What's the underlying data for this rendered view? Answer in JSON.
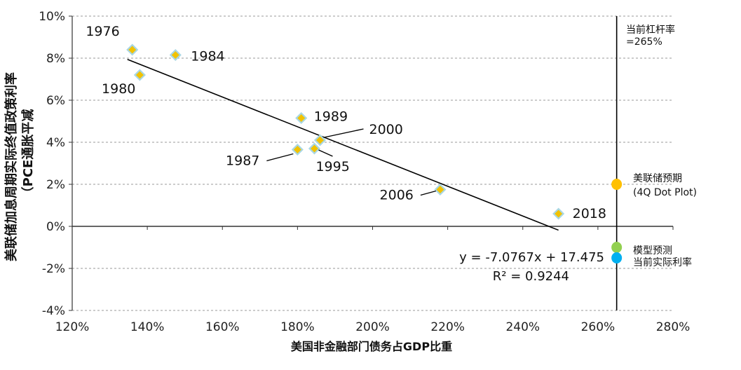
{
  "chart_data": {
    "type": "scatter",
    "xlabel": "美国非金融部门债务占GDP比重",
    "ylabel_line1": "美联储加息周期实际终值政策利率",
    "ylabel_line2": "（PCE通胀平减",
    "xlim": [
      120,
      280
    ],
    "ylim": [
      -4,
      10
    ],
    "x_ticks": [
      {
        "v": 120,
        "label": "120%"
      },
      {
        "v": 140,
        "label": "140%"
      },
      {
        "v": 160,
        "label": "160%"
      },
      {
        "v": 180,
        "label": "180%"
      },
      {
        "v": 200,
        "label": "200%"
      },
      {
        "v": 220,
        "label": "220%"
      },
      {
        "v": 240,
        "label": "240%"
      },
      {
        "v": 260,
        "label": "260%"
      },
      {
        "v": 280,
        "label": "280%"
      }
    ],
    "y_ticks": [
      {
        "v": 10,
        "label": "10%"
      },
      {
        "v": 8,
        "label": "8%"
      },
      {
        "v": 6,
        "label": "6%"
      },
      {
        "v": 4,
        "label": "4%"
      },
      {
        "v": 2,
        "label": "2%"
      },
      {
        "v": 0,
        "label": "0%"
      },
      {
        "v": -2,
        "label": "-2%"
      },
      {
        "v": -4,
        "label": "-4%"
      }
    ],
    "grid": true,
    "points": [
      {
        "label": "1976",
        "x": 136.0,
        "y": 8.4
      },
      {
        "label": "1984",
        "x": 147.5,
        "y": 8.15
      },
      {
        "label": "1980",
        "x": 138.0,
        "y": 7.2
      },
      {
        "label": "1989",
        "x": 181.0,
        "y": 5.15
      },
      {
        "label": "2000",
        "x": 186.0,
        "y": 4.1
      },
      {
        "label": "1987",
        "x": 180.0,
        "y": 3.65
      },
      {
        "label": "1995",
        "x": 184.5,
        "y": 3.7
      },
      {
        "label": "2006",
        "x": 218.0,
        "y": 1.75
      },
      {
        "label": "2018",
        "x": 249.5,
        "y": 0.6
      }
    ],
    "trendline": {
      "x_start": 134.7,
      "x_end": 249.5,
      "equation": "y = -7.0767x + 17.475",
      "r2": "R² = 0.9244"
    },
    "reference_line": {
      "x": 265,
      "label_line1": "当前杠杆率",
      "label_line2": "=265%"
    },
    "markers": [
      {
        "name_line1": "美联储预期",
        "name_line2": "(4Q Dot Plot)",
        "x": 265,
        "y": 2.0,
        "color": "#FFC000"
      },
      {
        "name_line1": "模型预测",
        "name_line2": "",
        "x": 265,
        "y": -1.0,
        "color": "#92D050"
      },
      {
        "name_line1": "当前实际利率",
        "name_line2": "",
        "x": 265,
        "y": -1.5,
        "color": "#00B0F0"
      }
    ],
    "point_color": "#F2C200",
    "point_edge_color": "#A9D7E3"
  }
}
